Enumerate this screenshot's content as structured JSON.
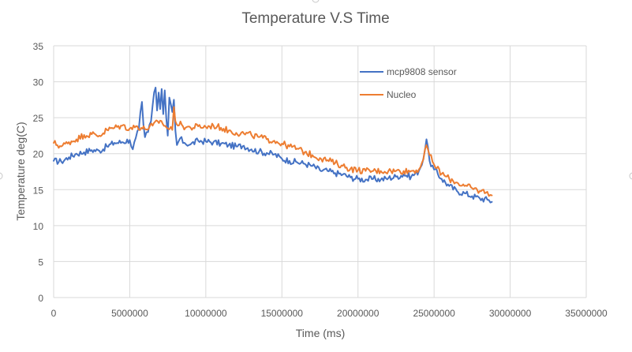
{
  "chart_data": {
    "type": "line",
    "title": "Temperature V.S Time",
    "xlabel": "Time (ms)",
    "ylabel": "Temperature deg(C)",
    "xlim": [
      0,
      35000000
    ],
    "ylim": [
      0,
      35
    ],
    "x_ticks": [
      0,
      5000000,
      10000000,
      15000000,
      20000000,
      25000000,
      30000000,
      35000000
    ],
    "x_tick_labels": [
      "0",
      "5000000",
      "10000000",
      "15000000",
      "20000000",
      "25000000",
      "30000000",
      "35000000"
    ],
    "y_ticks": [
      0,
      5,
      10,
      15,
      20,
      25,
      30,
      35
    ],
    "y_tick_labels": [
      "0",
      "5",
      "10",
      "15",
      "20",
      "25",
      "30",
      "35"
    ],
    "grid": true,
    "legend_position": "top-right",
    "series": [
      {
        "name": "mcp9808 sensor",
        "color": "#4472C4",
        "points": [
          [
            0,
            19.0
          ],
          [
            500000,
            18.9
          ],
          [
            1000000,
            19.5
          ],
          [
            1500000,
            20.0
          ],
          [
            2000000,
            20.2
          ],
          [
            2500000,
            20.5
          ],
          [
            3000000,
            20.4
          ],
          [
            3500000,
            21.0
          ],
          [
            4000000,
            21.5
          ],
          [
            4500000,
            21.6
          ],
          [
            5000000,
            21.9
          ],
          [
            5200000,
            20.6
          ],
          [
            5400000,
            22.2
          ],
          [
            5600000,
            23.5
          ],
          [
            5800000,
            27.2
          ],
          [
            5900000,
            24.0
          ],
          [
            6000000,
            22.3
          ],
          [
            6200000,
            23.0
          ],
          [
            6400000,
            24.5
          ],
          [
            6600000,
            28.5
          ],
          [
            6700000,
            29.2
          ],
          [
            6800000,
            26.0
          ],
          [
            6900000,
            28.5
          ],
          [
            7000000,
            26.2
          ],
          [
            7100000,
            29.0
          ],
          [
            7200000,
            25.5
          ],
          [
            7300000,
            28.8
          ],
          [
            7400000,
            25.0
          ],
          [
            7500000,
            22.5
          ],
          [
            7600000,
            27.8
          ],
          [
            7800000,
            25.8
          ],
          [
            7900000,
            27.5
          ],
          [
            8000000,
            23.2
          ],
          [
            8100000,
            21.2
          ],
          [
            8300000,
            22.1
          ],
          [
            8600000,
            21.5
          ],
          [
            9000000,
            21.3
          ],
          [
            9500000,
            21.8
          ],
          [
            10000000,
            21.7
          ],
          [
            10500000,
            21.6
          ],
          [
            11000000,
            21.4
          ],
          [
            11500000,
            21.2
          ],
          [
            12000000,
            21.0
          ],
          [
            12500000,
            21.1
          ],
          [
            13000000,
            20.6
          ],
          [
            13500000,
            20.3
          ],
          [
            14000000,
            20.1
          ],
          [
            14500000,
            19.9
          ],
          [
            15000000,
            19.3
          ],
          [
            15500000,
            19.0
          ],
          [
            16000000,
            18.8
          ],
          [
            16500000,
            18.6
          ],
          [
            17000000,
            18.3
          ],
          [
            17500000,
            17.7
          ],
          [
            18000000,
            17.6
          ],
          [
            18500000,
            17.3
          ],
          [
            19000000,
            17.1
          ],
          [
            19500000,
            16.7
          ],
          [
            20000000,
            16.5
          ],
          [
            20500000,
            16.4
          ],
          [
            21000000,
            16.5
          ],
          [
            21500000,
            16.4
          ],
          [
            22000000,
            16.6
          ],
          [
            22500000,
            16.8
          ],
          [
            23000000,
            17.1
          ],
          [
            23500000,
            16.8
          ],
          [
            24000000,
            17.6
          ],
          [
            24300000,
            19.3
          ],
          [
            24500000,
            22.0
          ],
          [
            24700000,
            19.0
          ],
          [
            25000000,
            17.8
          ],
          [
            25500000,
            16.5
          ],
          [
            26000000,
            15.5
          ],
          [
            26500000,
            14.8
          ],
          [
            27000000,
            14.5
          ],
          [
            27500000,
            14.1
          ],
          [
            28000000,
            13.8
          ],
          [
            28500000,
            13.6
          ],
          [
            28800000,
            13.3
          ]
        ]
      },
      {
        "name": "Nucleo",
        "color": "#ED7D31",
        "points": [
          [
            0,
            21.5
          ],
          [
            500000,
            21.0
          ],
          [
            1000000,
            21.6
          ],
          [
            1500000,
            22.0
          ],
          [
            2000000,
            22.6
          ],
          [
            2500000,
            22.7
          ],
          [
            3000000,
            22.5
          ],
          [
            3500000,
            23.3
          ],
          [
            4000000,
            23.6
          ],
          [
            4500000,
            23.9
          ],
          [
            5000000,
            23.5
          ],
          [
            5500000,
            23.8
          ],
          [
            6000000,
            23.4
          ],
          [
            6500000,
            23.9
          ],
          [
            7000000,
            24.6
          ],
          [
            7500000,
            23.5
          ],
          [
            7800000,
            23.3
          ],
          [
            7900000,
            26.5
          ],
          [
            8000000,
            24.5
          ],
          [
            8500000,
            23.8
          ],
          [
            9000000,
            23.6
          ],
          [
            9500000,
            23.8
          ],
          [
            10000000,
            23.7
          ],
          [
            10500000,
            23.9
          ],
          [
            11000000,
            23.6
          ],
          [
            11500000,
            23.2
          ],
          [
            12000000,
            22.9
          ],
          [
            12500000,
            22.8
          ],
          [
            13000000,
            22.6
          ],
          [
            13500000,
            22.3
          ],
          [
            14000000,
            22.0
          ],
          [
            14500000,
            21.8
          ],
          [
            15000000,
            21.4
          ],
          [
            15500000,
            21.0
          ],
          [
            16000000,
            20.7
          ],
          [
            16500000,
            20.2
          ],
          [
            17000000,
            19.8
          ],
          [
            17500000,
            19.4
          ],
          [
            18000000,
            19.1
          ],
          [
            18500000,
            18.7
          ],
          [
            19000000,
            18.3
          ],
          [
            19500000,
            17.9
          ],
          [
            20000000,
            17.7
          ],
          [
            20500000,
            17.6
          ],
          [
            21000000,
            17.6
          ],
          [
            21500000,
            17.6
          ],
          [
            22000000,
            17.6
          ],
          [
            22500000,
            17.6
          ],
          [
            23000000,
            17.6
          ],
          [
            23500000,
            17.6
          ],
          [
            24000000,
            17.8
          ],
          [
            24300000,
            19.2
          ],
          [
            24500000,
            21.2
          ],
          [
            24700000,
            19.8
          ],
          [
            25000000,
            18.5
          ],
          [
            25500000,
            17.2
          ],
          [
            26000000,
            16.5
          ],
          [
            26500000,
            16.0
          ],
          [
            27000000,
            15.5
          ],
          [
            27500000,
            15.2
          ],
          [
            28000000,
            14.8
          ],
          [
            28500000,
            14.7
          ],
          [
            28800000,
            14.2
          ]
        ]
      }
    ]
  }
}
